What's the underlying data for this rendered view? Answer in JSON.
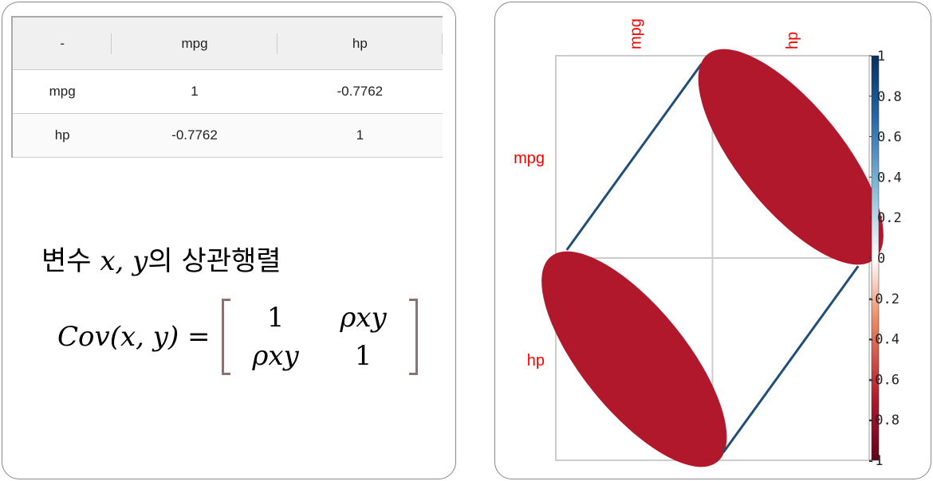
{
  "table": {
    "headers": [
      "-",
      "mpg",
      "hp"
    ],
    "rows": [
      [
        "mpg",
        "1",
        "-0.7762"
      ],
      [
        "hp",
        "-0.7762",
        "1"
      ]
    ]
  },
  "text": {
    "title_prefix": "변수 ",
    "title_vars": "x, y",
    "title_suffix": "의 상관행렬",
    "lhs": "Cov(x, y) =",
    "m11": "1",
    "m12": "ρxy",
    "m21": "ρxy",
    "m22": "1"
  },
  "chart_data": {
    "type": "heatmap",
    "style": "ellipse correlation plot",
    "variables": [
      "mpg",
      "hp"
    ],
    "matrix": [
      [
        1,
        -0.7762
      ],
      [
        -0.7762,
        1
      ]
    ],
    "colorbar": {
      "range": [
        -1,
        1
      ],
      "ticks": [
        "-1",
        "-0.8",
        "-0.6",
        "-0.4",
        "-0.2",
        "0",
        "0.2",
        "0.4",
        "0.6",
        "0.8",
        "1"
      ],
      "low_color": "#67001f",
      "mid_color": "#ffffff",
      "high_color": "#053061"
    },
    "label_color": "#ff0000",
    "negative_color": "#b2182b",
    "positive_color": "#1f4e79"
  }
}
